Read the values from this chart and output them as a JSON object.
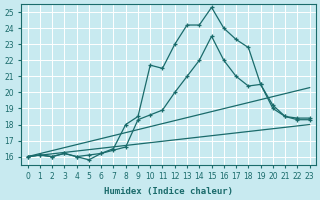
{
  "xlabel": "Humidex (Indice chaleur)",
  "bg_color": "#c8eaf0",
  "grid_color": "#ffffff",
  "line_color": "#1a6b6b",
  "xlim": [
    -0.5,
    23.5
  ],
  "ylim": [
    15.5,
    25.5
  ],
  "xticks": [
    0,
    1,
    2,
    3,
    4,
    5,
    6,
    7,
    8,
    9,
    10,
    11,
    12,
    13,
    14,
    15,
    16,
    17,
    18,
    19,
    20,
    21,
    22,
    23
  ],
  "yticks": [
    16,
    17,
    18,
    19,
    20,
    21,
    22,
    23,
    24,
    25
  ],
  "line1_x": [
    0,
    1,
    2,
    3,
    4,
    5,
    6,
    7,
    8,
    9,
    10,
    11,
    12,
    13,
    14,
    15,
    16,
    17,
    18,
    19,
    20,
    21,
    22,
    23
  ],
  "line1_y": [
    16,
    16.1,
    16,
    16.2,
    16,
    15.8,
    16.2,
    16.5,
    18.0,
    18.5,
    21.7,
    21.5,
    23.0,
    24.2,
    24.2,
    25.3,
    24.0,
    23.3,
    22.8,
    20.5,
    19.0,
    18.5,
    18.4,
    18.4
  ],
  "line2_x": [
    0,
    1,
    2,
    3,
    4,
    5,
    6,
    7,
    8,
    9,
    10,
    11,
    12,
    13,
    14,
    15,
    16,
    17,
    18,
    19,
    20,
    21,
    22,
    23
  ],
  "line2_y": [
    16,
    16.1,
    16,
    16.2,
    16,
    16.1,
    16.2,
    16.4,
    16.6,
    18.3,
    18.6,
    18.9,
    20.0,
    21.0,
    22.0,
    23.5,
    22.0,
    21.0,
    20.4,
    20.5,
    19.2,
    18.5,
    18.3,
    18.3
  ],
  "line3_x": [
    0,
    23
  ],
  "line3_y": [
    16,
    20.3
  ],
  "line4_x": [
    0,
    23
  ],
  "line4_y": [
    16,
    18.0
  ]
}
